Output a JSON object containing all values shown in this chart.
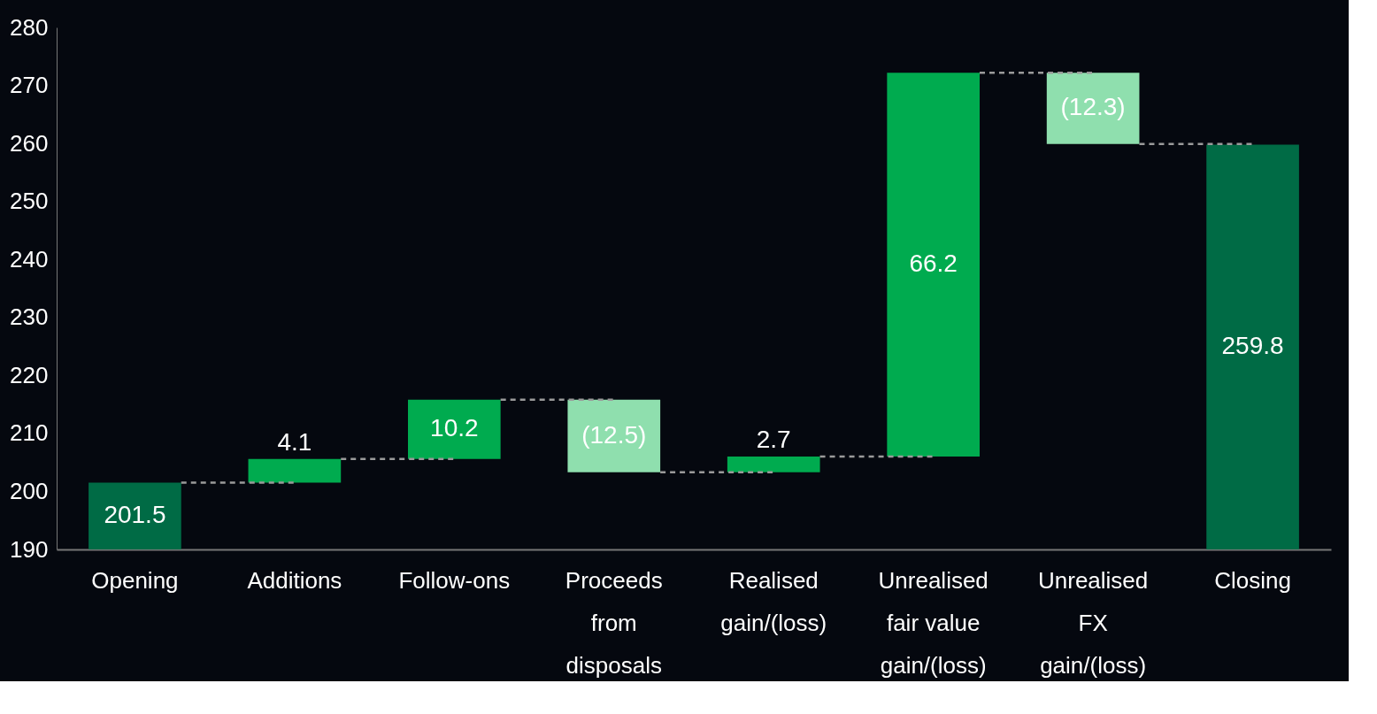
{
  "chart_data": {
    "type": "bar",
    "categories": [
      "Opening",
      "Additions",
      "Follow-ons",
      "Proceeds\nfrom\ndisposals",
      "Realised\ngain/(loss)",
      "Unrealised\nfair value\ngain/(loss)",
      "Unrealised\nFX\ngain/(loss)",
      "Closing"
    ],
    "base": [
      0,
      201.5,
      205.6,
      215.8,
      203.3,
      206.0,
      272.2,
      0
    ],
    "values": [
      201.5,
      4.1,
      10.2,
      -12.5,
      2.7,
      66.2,
      -12.3,
      259.8
    ],
    "value_labels": [
      "201.5",
      "4.1",
      "10.2",
      "(12.5)",
      "2.7",
      "66.2",
      "(12.3)",
      "259.8"
    ],
    "colors": [
      "#006b45",
      "#00ab4f",
      "#00ab4f",
      "#8fdfae",
      "#00ab4f",
      "#00ab4f",
      "#8fdfae",
      "#006b45"
    ],
    "ylim": [
      190,
      280
    ],
    "yticks": [
      190,
      200,
      210,
      220,
      230,
      240,
      250,
      260,
      270,
      280
    ],
    "grid": false
  }
}
